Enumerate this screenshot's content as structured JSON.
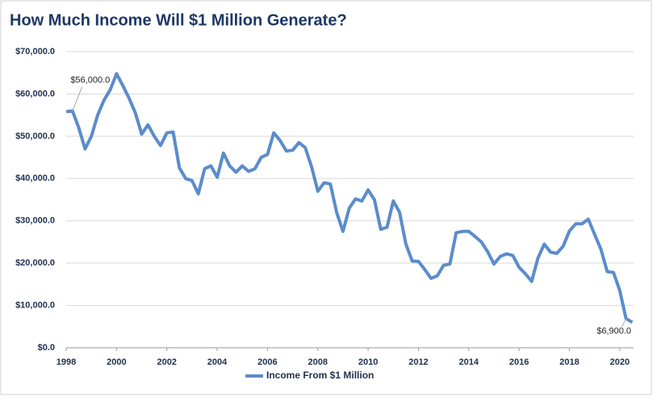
{
  "chart_data": {
    "type": "line",
    "title": "How Much Income Will $1 Million Generate?",
    "x": [
      1998,
      1998.25,
      1998.5,
      1998.75,
      1999,
      1999.25,
      1999.5,
      1999.75,
      2000,
      2000.25,
      2000.5,
      2000.75,
      2001,
      2001.25,
      2001.5,
      2001.75,
      2002,
      2002.25,
      2002.5,
      2002.75,
      2003,
      2003.25,
      2003.5,
      2003.75,
      2004,
      2004.25,
      2004.5,
      2004.75,
      2005,
      2005.25,
      2005.5,
      2005.75,
      2006,
      2006.25,
      2006.5,
      2006.75,
      2007,
      2007.25,
      2007.5,
      2007.75,
      2008,
      2008.25,
      2008.5,
      2008.75,
      2009,
      2009.25,
      2009.5,
      2009.75,
      2010,
      2010.25,
      2010.5,
      2010.75,
      2011,
      2011.25,
      2011.5,
      2011.75,
      2012,
      2012.25,
      2012.5,
      2012.75,
      2013,
      2013.25,
      2013.5,
      2013.75,
      2014,
      2014.25,
      2014.5,
      2014.75,
      2015,
      2015.25,
      2015.5,
      2015.75,
      2016,
      2016.25,
      2016.5,
      2016.75,
      2017,
      2017.25,
      2017.5,
      2017.75,
      2018,
      2018.25,
      2018.5,
      2018.75,
      2019,
      2019.25,
      2019.5,
      2019.75,
      2020,
      2020.25,
      2020.5
    ],
    "series": [
      {
        "name": "Income From $1 Million",
        "color": "#5b8ccc",
        "values": [
          55800,
          56000,
          52000,
          47000,
          50000,
          55000,
          58500,
          61000,
          64800,
          62000,
          59000,
          55500,
          50500,
          52700,
          50000,
          47800,
          50800,
          51000,
          42500,
          40000,
          39500,
          36400,
          42300,
          43000,
          40300,
          46000,
          43000,
          41500,
          43000,
          41700,
          42300,
          45000,
          45700,
          50800,
          49000,
          46500,
          46700,
          48500,
          47300,
          42800,
          37000,
          39000,
          38700,
          32000,
          27500,
          33000,
          35200,
          34700,
          37300,
          35000,
          28000,
          28500,
          34700,
          32000,
          24500,
          20500,
          20400,
          18500,
          16400,
          17000,
          19500,
          19800,
          27200,
          27500,
          27500,
          26300,
          25000,
          22700,
          19800,
          21600,
          22200,
          21800,
          19000,
          17500,
          15700,
          21200,
          24500,
          22600,
          22300,
          24000,
          27600,
          29300,
          29300,
          30400,
          26800,
          23300,
          18000,
          17800,
          13500,
          6900,
          6000
        ],
        "value_labels": [
          null,
          "$56,000.0",
          null,
          null,
          null,
          null,
          null,
          null,
          null,
          null,
          null,
          null,
          null,
          null,
          null,
          null,
          null,
          null,
          null,
          null,
          null,
          null,
          null,
          null,
          null,
          null,
          null,
          null,
          null,
          null,
          null,
          null,
          null,
          null,
          null,
          null,
          null,
          null,
          null,
          null,
          null,
          null,
          null,
          null,
          null,
          null,
          null,
          null,
          null,
          null,
          null,
          null,
          null,
          null,
          null,
          null,
          null,
          null,
          null,
          null,
          null,
          null,
          null,
          null,
          null,
          null,
          null,
          null,
          null,
          null,
          null,
          null,
          null,
          null,
          null,
          null,
          null,
          null,
          null,
          null,
          null,
          null,
          null,
          null,
          null,
          null,
          null,
          null,
          null,
          "$6,900.0",
          null
        ]
      }
    ],
    "xlim": [
      1998,
      2020.55
    ],
    "xticks": [
      1998,
      2000,
      2002,
      2004,
      2006,
      2008,
      2010,
      2012,
      2014,
      2016,
      2018,
      2020
    ],
    "ylim": [
      0,
      70000
    ],
    "yticks": [
      {
        "value": 0,
        "label": "$0.0"
      },
      {
        "value": 10000,
        "label": "$10,000.0"
      },
      {
        "value": 20000,
        "label": "$20,000.0"
      },
      {
        "value": 30000,
        "label": "$30,000.0"
      },
      {
        "value": 40000,
        "label": "$40,000.0"
      },
      {
        "value": 50000,
        "label": "$50,000.0"
      },
      {
        "value": 60000,
        "label": "$60,000.0"
      },
      {
        "value": 70000,
        "label": "$70,000.0"
      }
    ],
    "grid": true,
    "legend": "bottom"
  }
}
